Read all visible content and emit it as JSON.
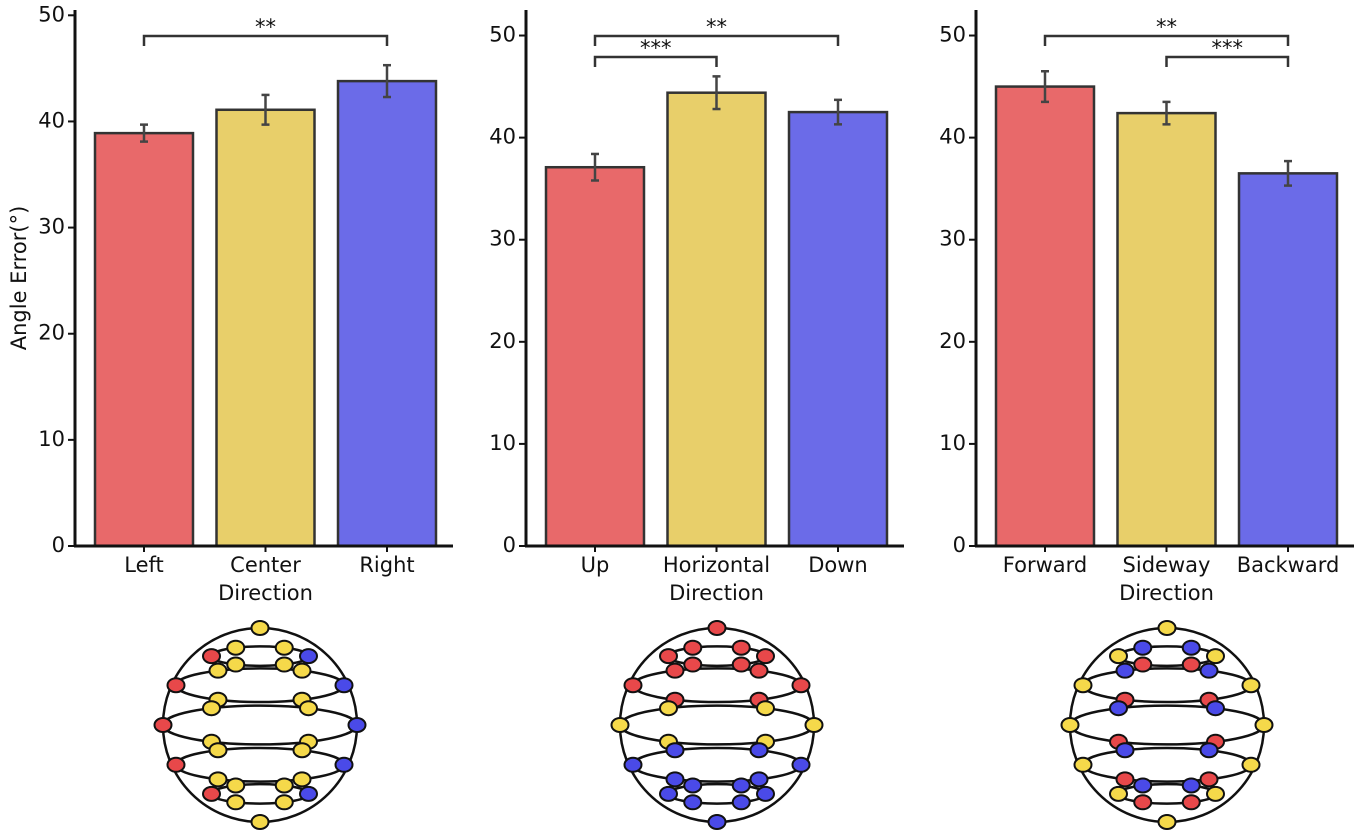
{
  "chart_data": [
    {
      "type": "bar",
      "categories": [
        "Left",
        "Center",
        "Right"
      ],
      "values": [
        38.9,
        41.1,
        43.8
      ],
      "errors": [
        0.8,
        1.4,
        1.5
      ],
      "colors": [
        "#e8696a",
        "#e8cf6a",
        "#6b6be8"
      ],
      "x_label": "Direction",
      "y_label": "Angle Error(°)",
      "ylim": [
        0,
        50.5
      ],
      "yticks": [
        0,
        10,
        20,
        30,
        40,
        50
      ],
      "annotations": [
        {
          "text": "**",
          "from": "Left",
          "to": "Right"
        }
      ]
    },
    {
      "type": "bar",
      "categories": [
        "Up",
        "Horizontal",
        "Down"
      ],
      "values": [
        37.1,
        44.4,
        42.5
      ],
      "errors": [
        1.3,
        1.6,
        1.2
      ],
      "colors": [
        "#e8696a",
        "#e8cf6a",
        "#6b6be8"
      ],
      "x_label": "Direction",
      "ylim": [
        0,
        52.5
      ],
      "yticks": [
        0,
        10,
        20,
        30,
        40,
        50
      ],
      "annotations": [
        {
          "text": "**",
          "from": "Up",
          "to": "Down"
        },
        {
          "text": "***",
          "from": "Up",
          "to": "Horizontal"
        }
      ]
    },
    {
      "type": "bar",
      "categories": [
        "Forward",
        "Sideway",
        "Backward"
      ],
      "values": [
        45.0,
        42.4,
        36.5
      ],
      "errors": [
        1.5,
        1.1,
        1.2
      ],
      "colors": [
        "#e8696a",
        "#e8cf6a",
        "#6b6be8"
      ],
      "x_label": "Direction",
      "ylim": [
        0,
        52.5
      ],
      "yticks": [
        0,
        10,
        20,
        30,
        40,
        50
      ],
      "annotations": [
        {
          "text": "**",
          "from": "Forward",
          "to": "Backward"
        },
        {
          "text": "***",
          "from": "Sideway",
          "to": "Backward"
        }
      ]
    }
  ]
}
